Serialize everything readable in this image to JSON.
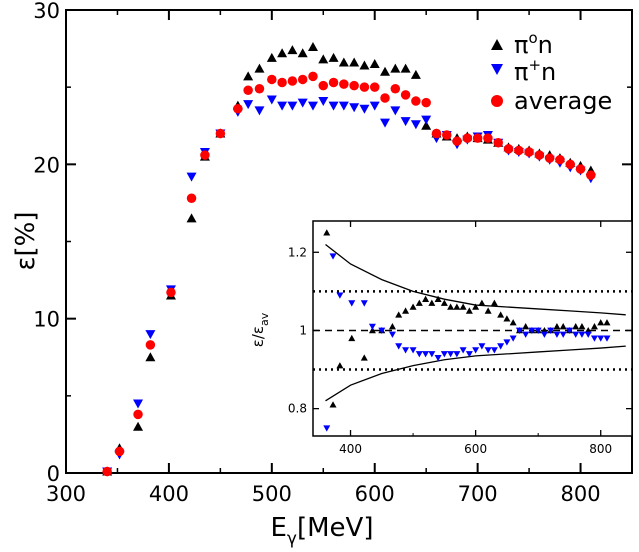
{
  "chart_data": [
    {
      "type": "scatter",
      "panel": "main",
      "xlabel": "E",
      "xlabel_sub": "γ",
      "xlabel_unit": "[MeV]",
      "ylabel": "ε",
      "ylabel_unit": "[%]",
      "xlim": [
        300,
        850
      ],
      "ylim": [
        0,
        30
      ],
      "xticks": [
        300,
        400,
        500,
        600,
        700,
        800
      ],
      "yticks": [
        0,
        10,
        20,
        30
      ],
      "legend_position": "top-right",
      "series": [
        {
          "name": "π°n",
          "name_base": "π",
          "name_sup": "o",
          "name_tail": "n",
          "marker": "triangle-up",
          "color": "#000000",
          "points": [
            [
              340,
              0.1
            ],
            [
              352,
              1.6
            ],
            [
              370,
              3.0
            ],
            [
              382,
              7.5
            ],
            [
              402,
              11.5
            ],
            [
              422,
              16.5
            ],
            [
              435,
              20.5
            ],
            [
              450,
              22.0
            ],
            [
              467,
              23.8
            ],
            [
              477,
              25.7
            ],
            [
              488,
              26.2
            ],
            [
              500,
              26.9
            ],
            [
              510,
              27.2
            ],
            [
              520,
              27.4
            ],
            [
              530,
              27.2
            ],
            [
              540,
              27.6
            ],
            [
              550,
              26.8
            ],
            [
              560,
              26.9
            ],
            [
              570,
              26.6
            ],
            [
              580,
              26.6
            ],
            [
              590,
              26.4
            ],
            [
              600,
              26.5
            ],
            [
              610,
              26.0
            ],
            [
              620,
              26.2
            ],
            [
              630,
              26.2
            ],
            [
              640,
              25.8
            ],
            [
              650,
              22.5
            ],
            [
              660,
              22.0
            ],
            [
              670,
              21.8
            ],
            [
              680,
              21.7
            ],
            [
              690,
              21.8
            ],
            [
              700,
              21.7
            ],
            [
              710,
              21.6
            ],
            [
              720,
              21.4
            ],
            [
              730,
              21.1
            ],
            [
              740,
              21.0
            ],
            [
              750,
              20.9
            ],
            [
              760,
              20.7
            ],
            [
              770,
              20.6
            ],
            [
              780,
              20.4
            ],
            [
              790,
              20.1
            ],
            [
              800,
              19.9
            ],
            [
              810,
              19.6
            ]
          ]
        },
        {
          "name": "π⁺n",
          "name_base": "π",
          "name_sup": "+",
          "name_tail": "n",
          "marker": "triangle-down",
          "color": "#0000ff",
          "points": [
            [
              340,
              0.1
            ],
            [
              352,
              1.2
            ],
            [
              370,
              4.5
            ],
            [
              382,
              9.0
            ],
            [
              402,
              11.9
            ],
            [
              422,
              19.2
            ],
            [
              435,
              20.8
            ],
            [
              450,
              22.0
            ],
            [
              467,
              23.4
            ],
            [
              477,
              23.9
            ],
            [
              488,
              23.5
            ],
            [
              500,
              24.2
            ],
            [
              510,
              23.8
            ],
            [
              520,
              23.8
            ],
            [
              530,
              24.0
            ],
            [
              540,
              23.8
            ],
            [
              550,
              24.1
            ],
            [
              560,
              23.8
            ],
            [
              570,
              23.8
            ],
            [
              580,
              23.7
            ],
            [
              590,
              23.6
            ],
            [
              600,
              23.8
            ],
            [
              610,
              22.7
            ],
            [
              620,
              23.5
            ],
            [
              630,
              22.8
            ],
            [
              640,
              22.6
            ],
            [
              650,
              22.9
            ],
            [
              660,
              21.7
            ],
            [
              670,
              21.9
            ],
            [
              680,
              21.3
            ],
            [
              690,
              21.6
            ],
            [
              700,
              21.8
            ],
            [
              710,
              21.9
            ],
            [
              720,
              21.4
            ],
            [
              730,
              20.9
            ],
            [
              740,
              20.8
            ],
            [
              750,
              20.7
            ],
            [
              760,
              20.5
            ],
            [
              770,
              20.3
            ],
            [
              780,
              20.1
            ],
            [
              790,
              19.8
            ],
            [
              800,
              19.6
            ],
            [
              810,
              19.1
            ]
          ]
        },
        {
          "name": "average",
          "marker": "circle",
          "color": "#ff0000",
          "points": [
            [
              340,
              0.1
            ],
            [
              352,
              1.4
            ],
            [
              370,
              3.8
            ],
            [
              382,
              8.3
            ],
            [
              402,
              11.7
            ],
            [
              422,
              17.8
            ],
            [
              435,
              20.6
            ],
            [
              450,
              22.0
            ],
            [
              467,
              23.6
            ],
            [
              477,
              24.8
            ],
            [
              488,
              24.9
            ],
            [
              500,
              25.5
            ],
            [
              510,
              25.3
            ],
            [
              520,
              25.4
            ],
            [
              530,
              25.5
            ],
            [
              540,
              25.7
            ],
            [
              550,
              25.1
            ],
            [
              560,
              25.3
            ],
            [
              570,
              25.2
            ],
            [
              580,
              25.1
            ],
            [
              590,
              25.0
            ],
            [
              600,
              25.0
            ],
            [
              610,
              24.3
            ],
            [
              620,
              24.9
            ],
            [
              630,
              24.5
            ],
            [
              640,
              24.1
            ],
            [
              650,
              24.0
            ],
            [
              660,
              22.0
            ],
            [
              670,
              21.9
            ],
            [
              680,
              21.5
            ],
            [
              690,
              21.7
            ],
            [
              700,
              21.7
            ],
            [
              710,
              21.7
            ],
            [
              720,
              21.4
            ],
            [
              730,
              21.0
            ],
            [
              740,
              20.9
            ],
            [
              750,
              20.8
            ],
            [
              760,
              20.6
            ],
            [
              770,
              20.4
            ],
            [
              780,
              20.3
            ],
            [
              790,
              20.0
            ],
            [
              800,
              19.7
            ],
            [
              810,
              19.3
            ]
          ]
        }
      ]
    },
    {
      "type": "scatter",
      "panel": "inset",
      "xlim": [
        340,
        850
      ],
      "ylim": [
        0.73,
        1.28
      ],
      "xticks": [
        400,
        600,
        800
      ],
      "yticks": [
        0.8,
        1,
        1.2
      ],
      "yticklabels": [
        "0.8",
        "1",
        "1.2"
      ],
      "ylabel_base": "ε/ε",
      "ylabel_sub": "av",
      "reference_lines": {
        "dashed": [
          1.0
        ],
        "dotted": [
          0.9,
          1.1
        ]
      },
      "envelope": {
        "upper": [
          [
            360,
            1.22
          ],
          [
            400,
            1.17
          ],
          [
            450,
            1.13
          ],
          [
            500,
            1.1
          ],
          [
            550,
            1.08
          ],
          [
            600,
            1.065
          ],
          [
            650,
            1.06
          ],
          [
            700,
            1.055
          ],
          [
            750,
            1.05
          ],
          [
            800,
            1.045
          ],
          [
            840,
            1.04
          ]
        ],
        "lower": [
          [
            360,
            0.82
          ],
          [
            400,
            0.86
          ],
          [
            450,
            0.89
          ],
          [
            500,
            0.91
          ],
          [
            550,
            0.925
          ],
          [
            600,
            0.935
          ],
          [
            650,
            0.94
          ],
          [
            700,
            0.945
          ],
          [
            750,
            0.95
          ],
          [
            800,
            0.955
          ],
          [
            840,
            0.96
          ]
        ]
      },
      "series": [
        {
          "name": "π°n",
          "marker": "triangle-up",
          "color": "#000000",
          "points": [
            [
              362,
              1.25
            ],
            [
              372,
              0.81
            ],
            [
              383,
              0.91
            ],
            [
              402,
              0.98
            ],
            [
              422,
              0.93
            ],
            [
              435,
              1.0
            ],
            [
              450,
              1.0
            ],
            [
              467,
              1.01
            ],
            [
              477,
              1.04
            ],
            [
              488,
              1.05
            ],
            [
              500,
              1.06
            ],
            [
              510,
              1.07
            ],
            [
              520,
              1.08
            ],
            [
              530,
              1.07
            ],
            [
              540,
              1.08
            ],
            [
              550,
              1.07
            ],
            [
              560,
              1.06
            ],
            [
              570,
              1.06
            ],
            [
              580,
              1.06
            ],
            [
              590,
              1.05
            ],
            [
              600,
              1.06
            ],
            [
              610,
              1.07
            ],
            [
              620,
              1.05
            ],
            [
              630,
              1.07
            ],
            [
              640,
              1.04
            ],
            [
              650,
              1.03
            ],
            [
              660,
              1.02
            ],
            [
              670,
              1.0
            ],
            [
              680,
              1.01
            ],
            [
              690,
              1.0
            ],
            [
              700,
              1.0
            ],
            [
              710,
              1.0
            ],
            [
              720,
              1.0
            ],
            [
              730,
              1.01
            ],
            [
              740,
              1.01
            ],
            [
              750,
              1.0
            ],
            [
              760,
              1.01
            ],
            [
              770,
              1.01
            ],
            [
              780,
              1.0
            ],
            [
              790,
              1.01
            ],
            [
              800,
              1.02
            ],
            [
              810,
              1.02
            ]
          ]
        },
        {
          "name": "π⁺n",
          "marker": "triangle-down",
          "color": "#0000ff",
          "points": [
            [
              362,
              0.75
            ],
            [
              372,
              1.19
            ],
            [
              383,
              1.09
            ],
            [
              402,
              1.07
            ],
            [
              422,
              1.07
            ],
            [
              435,
              1.01
            ],
            [
              450,
              1.0
            ],
            [
              467,
              0.99
            ],
            [
              477,
              0.96
            ],
            [
              488,
              0.95
            ],
            [
              500,
              0.95
            ],
            [
              510,
              0.94
            ],
            [
              520,
              0.94
            ],
            [
              530,
              0.94
            ],
            [
              540,
              0.93
            ],
            [
              550,
              0.94
            ],
            [
              560,
              0.94
            ],
            [
              570,
              0.94
            ],
            [
              580,
              0.95
            ],
            [
              590,
              0.94
            ],
            [
              600,
              0.95
            ],
            [
              610,
              0.96
            ],
            [
              620,
              0.95
            ],
            [
              630,
              0.95
            ],
            [
              640,
              0.96
            ],
            [
              650,
              0.97
            ],
            [
              660,
              0.98
            ],
            [
              670,
              1.0
            ],
            [
              680,
              0.99
            ],
            [
              690,
              1.0
            ],
            [
              700,
              1.0
            ],
            [
              710,
              0.99
            ],
            [
              720,
              1.0
            ],
            [
              730,
              0.99
            ],
            [
              740,
              0.99
            ],
            [
              750,
              1.0
            ],
            [
              760,
              0.99
            ],
            [
              770,
              0.99
            ],
            [
              780,
              0.99
            ],
            [
              790,
              0.98
            ],
            [
              800,
              0.98
            ],
            [
              810,
              0.98
            ]
          ]
        }
      ]
    }
  ]
}
